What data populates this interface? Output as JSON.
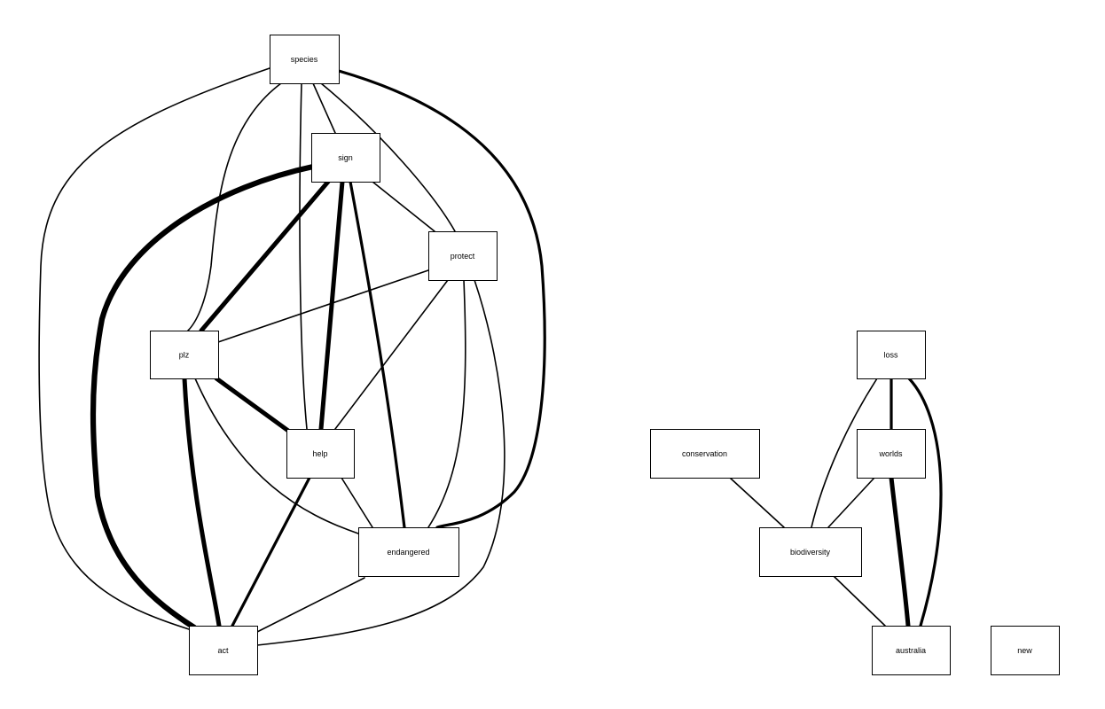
{
  "nodes": [
    {
      "id": "species",
      "label": "species"
    },
    {
      "id": "sign",
      "label": "sign"
    },
    {
      "id": "protect",
      "label": "protect"
    },
    {
      "id": "plz",
      "label": "plz"
    },
    {
      "id": "help",
      "label": "help"
    },
    {
      "id": "endangered",
      "label": "endangered"
    },
    {
      "id": "act",
      "label": "act"
    },
    {
      "id": "loss",
      "label": "loss"
    },
    {
      "id": "conservation",
      "label": "conservation"
    },
    {
      "id": "worlds",
      "label": "worlds"
    },
    {
      "id": "biodiversity",
      "label": "biodiversity"
    },
    {
      "id": "australia",
      "label": "australia"
    },
    {
      "id": "new",
      "label": "new"
    }
  ],
  "edges": [
    {
      "source": "species",
      "target": "act",
      "weight": 1
    },
    {
      "source": "species",
      "target": "plz",
      "weight": 1
    },
    {
      "source": "species",
      "target": "help",
      "weight": 1
    },
    {
      "source": "species",
      "target": "sign",
      "weight": 1
    },
    {
      "source": "species",
      "target": "protect",
      "weight": 1
    },
    {
      "source": "species",
      "target": "endangered",
      "weight": 2
    },
    {
      "source": "sign",
      "target": "act",
      "weight": 4
    },
    {
      "source": "sign",
      "target": "plz",
      "weight": 3
    },
    {
      "source": "sign",
      "target": "help",
      "weight": 3
    },
    {
      "source": "sign",
      "target": "endangered",
      "weight": 2
    },
    {
      "source": "sign",
      "target": "protect",
      "weight": 1
    },
    {
      "source": "protect",
      "target": "plz",
      "weight": 1
    },
    {
      "source": "protect",
      "target": "help",
      "weight": 1
    },
    {
      "source": "protect",
      "target": "endangered",
      "weight": 1
    },
    {
      "source": "protect",
      "target": "act",
      "weight": 1
    },
    {
      "source": "plz",
      "target": "help",
      "weight": 3
    },
    {
      "source": "plz",
      "target": "endangered",
      "weight": 1
    },
    {
      "source": "plz",
      "target": "act",
      "weight": 3
    },
    {
      "source": "help",
      "target": "endangered",
      "weight": 1
    },
    {
      "source": "help",
      "target": "act",
      "weight": 2
    },
    {
      "source": "endangered",
      "target": "act",
      "weight": 1
    },
    {
      "source": "loss",
      "target": "worlds",
      "weight": 2
    },
    {
      "source": "loss",
      "target": "biodiversity",
      "weight": 1
    },
    {
      "source": "loss",
      "target": "australia",
      "weight": 2
    },
    {
      "source": "worlds",
      "target": "biodiversity",
      "weight": 1
    },
    {
      "source": "worlds",
      "target": "australia",
      "weight": 3
    },
    {
      "source": "conservation",
      "target": "biodiversity",
      "weight": 1
    },
    {
      "source": "biodiversity",
      "target": "australia",
      "weight": 1
    }
  ]
}
